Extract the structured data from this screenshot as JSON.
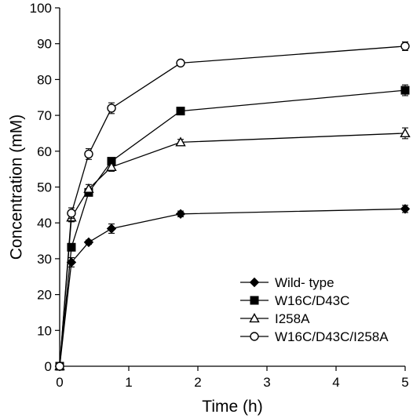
{
  "chart_data": {
    "type": "line",
    "title": "",
    "xlabel": "Time (h)",
    "ylabel": "Concentration (mM)",
    "xlim": [
      0,
      5
    ],
    "ylim": [
      0,
      100
    ],
    "x_ticks": [
      0,
      1,
      2,
      3,
      4,
      5
    ],
    "y_ticks": [
      0,
      10,
      20,
      30,
      40,
      50,
      60,
      70,
      80,
      90,
      100
    ],
    "grid": false,
    "legend_position": "bottom-right",
    "x": [
      0,
      0.17,
      0.42,
      0.75,
      1.75,
      5
    ],
    "series": [
      {
        "name": "Wild- type",
        "marker": "diamond",
        "fill": "#000000",
        "values": [
          0,
          29,
          34.6,
          38.4,
          42.5,
          43.9
        ],
        "errors": [
          0,
          1.3,
          0.6,
          1.3,
          0.8,
          1.0
        ]
      },
      {
        "name": "W16C/D43C",
        "marker": "square",
        "fill": "#000000",
        "values": [
          0,
          33.2,
          48.5,
          57.2,
          71.2,
          77
        ],
        "errors": [
          0,
          0.8,
          0.8,
          0.8,
          0.8,
          1.5
        ]
      },
      {
        "name": "I258A",
        "marker": "triangle",
        "fill": "#ffffff",
        "values": [
          0,
          41.5,
          49.5,
          55.6,
          62.5,
          65
        ],
        "errors": [
          0,
          1.2,
          1.2,
          1.2,
          0.8,
          1.5
        ]
      },
      {
        "name": "W16C/D43C/I258A",
        "marker": "circle",
        "fill": "#ffffff",
        "values": [
          0,
          42.7,
          59.2,
          72,
          84.6,
          89.3
        ],
        "errors": [
          0,
          1.5,
          1.5,
          1.5,
          0.6,
          1.2
        ]
      }
    ]
  }
}
